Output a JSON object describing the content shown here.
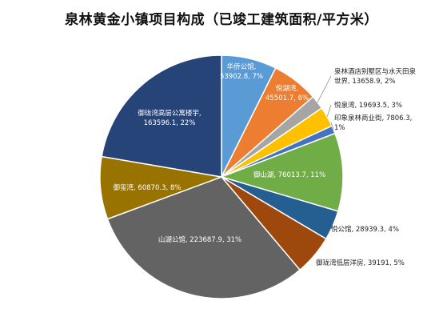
{
  "chart_data": {
    "type": "pie",
    "title": "泉林黄金小镇项目构成（已竣工建筑面积/平方米）",
    "slices": [
      {
        "name": "华侨公馆",
        "value": 53902.8,
        "percent": "7%",
        "label_lines": [
          "华侨公馆,",
          "53902.8, 7%"
        ],
        "color": "#5b9bd5"
      },
      {
        "name": "悦湖湾",
        "value": 45501.7,
        "percent": "6%",
        "label_lines": [
          "悦湖湾,",
          "45501.7, 6%"
        ],
        "color": "#ed7d31"
      },
      {
        "name": "泉林酒店别墅区与水天田泉世界",
        "value": 13658.9,
        "percent": "2%",
        "label_lines": [
          "泉林酒店别墅区与水天田泉",
          "世界, 13658.9, 2%"
        ],
        "color": "#a5a5a5"
      },
      {
        "name": "悦泉湾",
        "value": 19693.5,
        "percent": "3%",
        "label_lines": [
          "悦泉湾, 19693.5, 3%"
        ],
        "color": "#ffc000"
      },
      {
        "name": "印象泉林商业街",
        "value": 7806.3,
        "percent": "1%",
        "label_lines": [
          "印象泉林商业街, 7806.3,",
          "1%"
        ],
        "color": "#4472c4"
      },
      {
        "name": "御山湖",
        "value": 76013.7,
        "percent": "11%",
        "label_lines": [
          "御山湖, 76013.7, 11%"
        ],
        "color": "#70ad47"
      },
      {
        "name": "悦公馆",
        "value": 28939.3,
        "percent": "4%",
        "label_lines": [
          "悦公馆, 28939.3, 4%"
        ],
        "color": "#255e91"
      },
      {
        "name": "御珑湾低层洋房",
        "value": 39191,
        "percent": "5%",
        "label_lines": [
          "御珑湾低层洋房, 39191, 5%"
        ],
        "color": "#9e480e"
      },
      {
        "name": "山湖公馆",
        "value": 223687.9,
        "percent": "31%",
        "label_lines": [
          "山湖公馆, 223687.9, 31%"
        ],
        "color": "#636363"
      },
      {
        "name": "御玺湾",
        "value": 60870.3,
        "percent": "8%",
        "label_lines": [
          "御玺湾, 60870.3, 8%"
        ],
        "color": "#997300"
      },
      {
        "name": "御珑湾高层公寓楼宇",
        "value": 163596.1,
        "percent": "22%",
        "label_lines": [
          "御珑湾高层公寓楼宇,",
          "163596.1, 22%"
        ],
        "color": "#264478"
      }
    ]
  }
}
